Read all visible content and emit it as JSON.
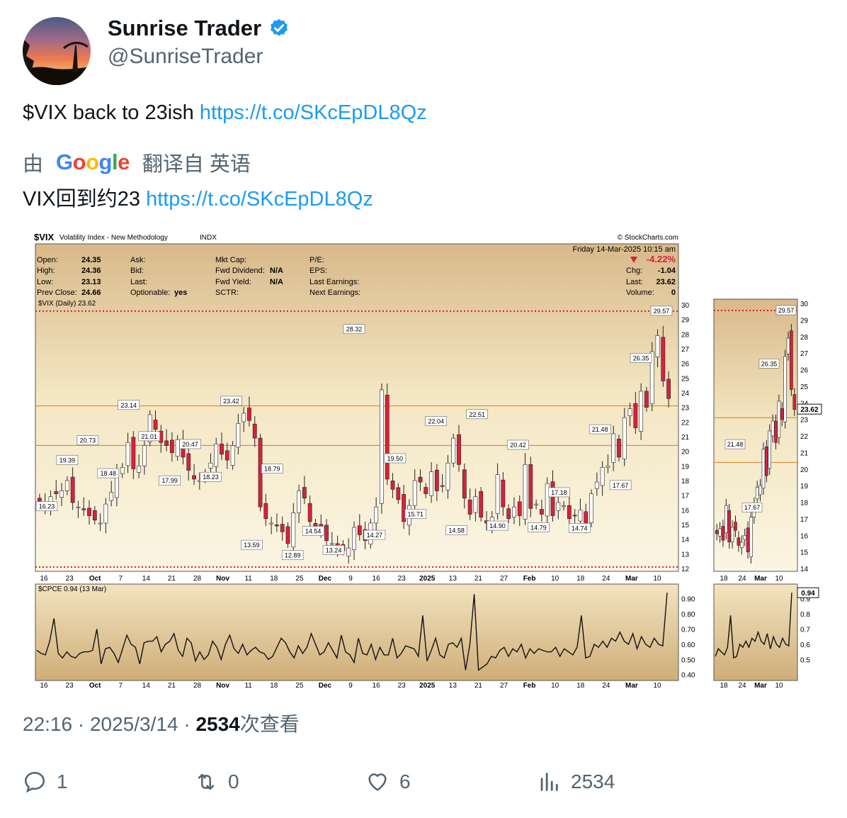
{
  "author": {
    "name": "Sunrise Trader",
    "handle": "@SunriseTrader"
  },
  "tweet": {
    "text": "$VIX back to 23ish",
    "link": "https://t.co/SKcEpDL8Qz"
  },
  "translation": {
    "prefix": "由",
    "google": [
      "G",
      "o",
      "o",
      "g",
      "l",
      "e"
    ],
    "label": "翻译自 英语",
    "text": "VIX回到约23",
    "link": "https://t.co/SKcEpDL8Qz"
  },
  "meta": {
    "time": "22:16",
    "date": "2025/3/14",
    "views": "2534",
    "views_label": "次查看"
  },
  "actions": {
    "replies": "1",
    "retweets": "0",
    "likes": "6",
    "views": "2534"
  },
  "colors": {
    "accent": "#1d9bf0",
    "up_candle": "#ffffff",
    "down_candle": "#d8213b",
    "resistance": "#e07a1a",
    "dotted": "#e31a1a"
  },
  "chart": {
    "title": "$VIX",
    "subtitle": "Volatility Index - New Methodology",
    "exchange": "INDX",
    "credit": "© StockCharts.com",
    "datetime": "Friday  14-Mar-2025  10:15 am",
    "quote": {
      "open_label": "Open:",
      "open": "24.35",
      "high_label": "High:",
      "high": "24.36",
      "low_label": "Low:",
      "low": "23.13",
      "prev_label": "Prev Close:",
      "prev": "24.66",
      "ask": "Ask:",
      "bid": "Bid:",
      "last_l": "Last:",
      "optionable": "Optionable:",
      "optionable_v": "yes",
      "mktcap": "Mkt Cap:",
      "fwddiv": "Fwd Dividend:",
      "fwddiv_v": "N/A",
      "fwdyield": "Fwd Yield:",
      "fwdyield_v": "N/A",
      "sctr": "SCTR:",
      "pe": "P/E:",
      "eps": "EPS:",
      "lastearn": "Last Earnings:",
      "nextearn": "Next Earnings:",
      "pct": "-4.22%",
      "chg_label": "Chg:",
      "chg": "-1.04",
      "last_label": "Last:",
      "last": "23.62",
      "vol_label": "Volume:",
      "vol": "0"
    },
    "legend_main": "$VIX (Daily) 23.62",
    "legend_lower": "$CPCE 0.94 (13 Mar)"
  },
  "chart_data": [
    {
      "type": "candlestick",
      "title": "$VIX (Daily) 23.62",
      "ylim": [
        12,
        30
      ],
      "y_ticks": [
        12,
        13,
        14,
        15,
        16,
        17,
        18,
        19,
        20,
        21,
        22,
        23,
        24,
        25,
        26,
        27,
        28,
        29,
        30
      ],
      "x_tick_labels": [
        "16",
        "23",
        "Oct",
        "7",
        "14",
        "21",
        "28",
        "Nov",
        "11",
        "18",
        "25",
        "Dec",
        "9",
        "16",
        "23",
        "2025",
        "13",
        "21",
        "27",
        "Feb",
        "10",
        "18",
        "24",
        "Mar",
        "10"
      ],
      "horizontal_lines": [
        23.1,
        20.4
      ],
      "dotted_lines": [
        29.57,
        12.1
      ],
      "annotations": [
        {
          "label": "16.23",
          "value": 16.23
        },
        {
          "label": "19.39",
          "value": 19.39
        },
        {
          "label": "20.73",
          "value": 20.73
        },
        {
          "label": "18.48",
          "value": 18.48
        },
        {
          "label": "23.14",
          "value": 23.14
        },
        {
          "label": "21.01",
          "value": 21.01
        },
        {
          "label": "17.99",
          "value": 17.99
        },
        {
          "label": "20.47",
          "value": 20.47
        },
        {
          "label": "18.23",
          "value": 18.23
        },
        {
          "label": "23.42",
          "value": 23.42
        },
        {
          "label": "13.59",
          "value": 13.59
        },
        {
          "label": "18.79",
          "value": 18.79
        },
        {
          "label": "12.89",
          "value": 12.89
        },
        {
          "label": "14.54",
          "value": 14.54
        },
        {
          "label": "13.24",
          "value": 13.24
        },
        {
          "label": "28.32",
          "value": 28.32
        },
        {
          "label": "14.27",
          "value": 14.27
        },
        {
          "label": "19.50",
          "value": 19.5
        },
        {
          "label": "15.71",
          "value": 15.71
        },
        {
          "label": "22.04",
          "value": 22.04
        },
        {
          "label": "14.58",
          "value": 14.58
        },
        {
          "label": "22.51",
          "value": 22.51
        },
        {
          "label": "14.90",
          "value": 14.9
        },
        {
          "label": "20.42",
          "value": 20.42
        },
        {
          "label": "14.79",
          "value": 14.79
        },
        {
          "label": "17.18",
          "value": 17.18
        },
        {
          "label": "14.74",
          "value": 14.74
        },
        {
          "label": "21.48",
          "value": 21.48
        },
        {
          "label": "17.67",
          "value": 17.67
        },
        {
          "label": "26.35",
          "value": 26.35
        },
        {
          "label": "29.57",
          "value": 29.57
        }
      ],
      "closes": [
        16.6,
        16.2,
        16.9,
        17.1,
        17.3,
        18.0,
        16.5,
        16.2,
        16.0,
        15.6,
        15.3,
        15.1,
        16.4,
        17.2,
        18.6,
        18.9,
        20.6,
        18.8,
        19.0,
        20.4,
        22.5,
        21.5,
        20.6,
        20.4,
        19.9,
        20.8,
        19.6,
        18.7,
        18.1,
        18.0,
        18.5,
        19.2,
        20.5,
        19.8,
        19.4,
        20.4,
        21.9,
        22.6,
        22.1,
        20.9,
        16.2,
        15.4,
        15.1,
        14.9,
        14.5,
        13.7,
        15.8,
        17.3,
        16.8,
        15.2,
        14.9,
        14.6,
        13.9,
        13.7,
        13.4,
        13.2,
        13.4,
        14.8,
        14.3,
        13.9,
        15.1,
        16.2,
        24.2,
        18.1,
        17.4,
        16.7,
        15.2,
        16.3,
        18.0,
        17.9,
        17.1,
        18.6,
        17.3,
        17.6,
        19.2,
        20.9,
        19.1,
        16.8,
        15.7,
        16.9,
        15.5,
        15.1,
        15.5,
        18.4,
        16.2,
        15.4,
        16.2,
        15.6,
        19.1,
        16.1,
        16.4,
        15.7,
        17.8,
        15.6,
        16.5,
        16.3,
        15.4,
        15.6,
        16.0,
        15.0,
        17.1,
        17.9,
        18.9,
        19.0,
        21.2,
        19.6,
        22.3,
        22.9,
        21.6,
        24.1,
        23.0,
        26.8,
        27.9,
        24.8,
        23.6
      ],
      "volume_panel": {
        "name": "$CPCE 0.94 (13 Mar)",
        "ylim": [
          0.38,
          0.95
        ],
        "y_ticks": [
          0.4,
          0.5,
          0.6,
          0.7,
          0.8,
          0.9
        ],
        "values": [
          0.56,
          0.54,
          0.53,
          0.62,
          0.77,
          0.54,
          0.51,
          0.55,
          0.52,
          0.51,
          0.54,
          0.55,
          0.55,
          0.56,
          0.7,
          0.47,
          0.57,
          0.58,
          0.54,
          0.48,
          0.57,
          0.66,
          0.6,
          0.58,
          0.47,
          0.61,
          0.62,
          0.62,
          0.65,
          0.55,
          0.6,
          0.62,
          0.67,
          0.56,
          0.52,
          0.64,
          0.61,
          0.49,
          0.55,
          0.5,
          0.53,
          0.62,
          0.58,
          0.5,
          0.6,
          0.66,
          0.57,
          0.54,
          0.6,
          0.53,
          0.56,
          0.58,
          0.55,
          0.54,
          0.5,
          0.52,
          0.58,
          0.64,
          0.61,
          0.55,
          0.51,
          0.59,
          0.54,
          0.58,
          0.67,
          0.6,
          0.53,
          0.55,
          0.61,
          0.56,
          0.51,
          0.66,
          0.55,
          0.53,
          0.48,
          0.64,
          0.54,
          0.53,
          0.6,
          0.5,
          0.58,
          0.53,
          0.53,
          0.64,
          0.51,
          0.54,
          0.59,
          0.58,
          0.57,
          0.52,
          0.79,
          0.49,
          0.56,
          0.64,
          0.53,
          0.51,
          0.6,
          0.61,
          0.58,
          0.64,
          0.43,
          0.6,
          0.93,
          0.43,
          0.45,
          0.47,
          0.52,
          0.51,
          0.56,
          0.58,
          0.52,
          0.57,
          0.55,
          0.6,
          0.51,
          0.57,
          0.54,
          0.57,
          0.56,
          0.55,
          0.55,
          0.58,
          0.52,
          0.57,
          0.55,
          0.53,
          0.58,
          0.79,
          0.51,
          0.52,
          0.6,
          0.58,
          0.62,
          0.58,
          0.64,
          0.62,
          0.68,
          0.62,
          0.6,
          0.67,
          0.57,
          0.65,
          0.6,
          0.58,
          0.64,
          0.6,
          0.59,
          0.94
        ]
      }
    },
    {
      "type": "candlestick",
      "title": "inset",
      "ylim": [
        14,
        30
      ],
      "y_ticks": [
        14,
        15,
        16,
        17,
        18,
        19,
        20,
        21,
        22,
        23,
        24,
        25,
        26,
        27,
        28,
        29,
        30
      ],
      "x_tick_labels": [
        "18",
        "24",
        "Mar",
        "10"
      ],
      "annotations": [
        {
          "label": "21.48",
          "value": 21.48
        },
        {
          "label": "17.67",
          "value": 17.67
        },
        {
          "label": "26.35",
          "value": 26.35
        },
        {
          "label": "29.57",
          "value": 29.57
        }
      ],
      "last_label": "23.62",
      "cpce_last": "0.94"
    }
  ]
}
